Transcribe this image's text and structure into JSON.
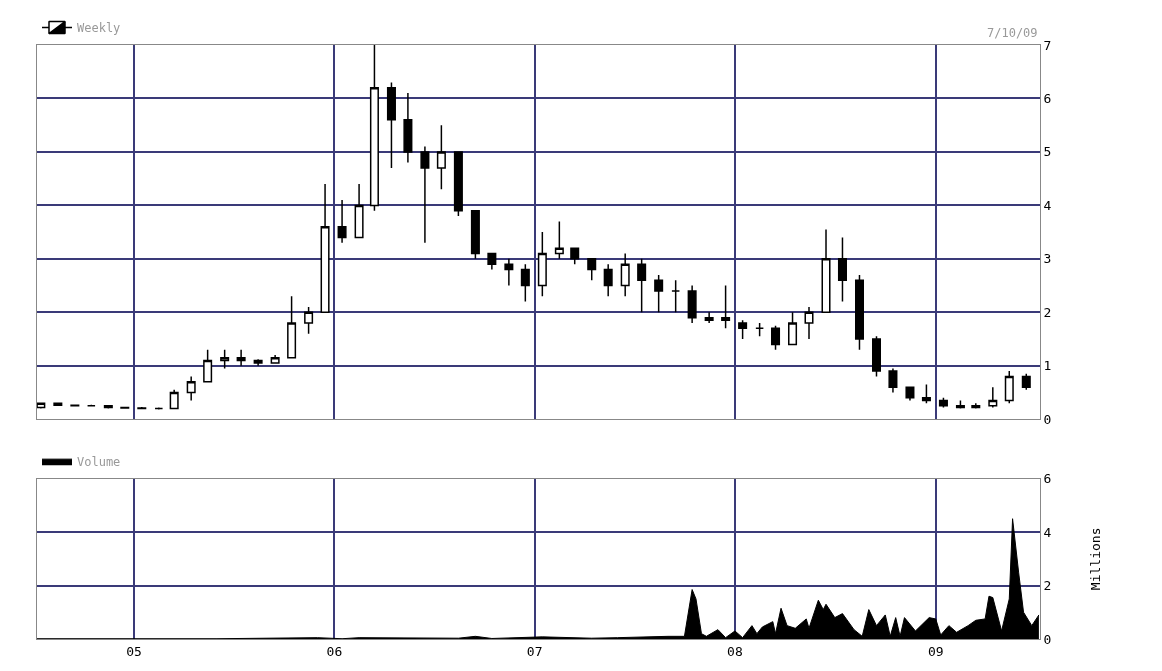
{
  "chart_data": [
    {
      "type": "candlestick",
      "annotations": [
        "7/10/09"
      ],
      "legend": "top left",
      "grid": true,
      "tick_labels": "y",
      "xlim": [
        "2004-07-08",
        "2009-07-10"
      ],
      "xticks": [
        {
          "value": "2005-01-01",
          "label": null
        },
        {
          "value": "2006-01-01",
          "label": null
        },
        {
          "value": "2007-01-01",
          "label": null
        },
        {
          "value": "2008-01-01",
          "label": null
        },
        {
          "value": "2009-01-01",
          "label": null
        }
      ],
      "ylim": [
        0,
        7
      ],
      "yticks": [
        0,
        1,
        2,
        3,
        4,
        5,
        6,
        7
      ],
      "x": [
        "2004-07-15",
        "2004-08-15",
        "2004-09-15",
        "2004-10-15",
        "2004-11-15",
        "2004-12-15",
        "2005-01-15",
        "2005-02-15",
        "2005-03-15",
        "2005-04-15",
        "2005-05-15",
        "2005-06-15",
        "2005-07-15",
        "2005-08-15",
        "2005-09-15",
        "2005-10-15",
        "2005-11-15",
        "2005-12-15",
        "2006-01-15",
        "2006-02-15",
        "2006-03-15",
        "2006-04-15",
        "2006-05-15",
        "2006-06-15",
        "2006-07-15",
        "2006-08-15",
        "2006-09-15",
        "2006-10-15",
        "2006-11-15",
        "2006-12-15",
        "2007-01-15",
        "2007-02-15",
        "2007-03-15",
        "2007-04-15",
        "2007-05-15",
        "2007-06-15",
        "2007-07-15",
        "2007-08-15",
        "2007-09-15",
        "2007-10-15",
        "2007-11-15",
        "2007-12-15",
        "2008-01-15",
        "2008-02-15",
        "2008-03-15",
        "2008-04-15",
        "2008-05-15",
        "2008-06-15",
        "2008-07-15",
        "2008-08-15",
        "2008-09-15",
        "2008-10-15",
        "2008-11-15",
        "2008-12-15",
        "2009-01-15",
        "2009-02-15",
        "2009-03-15",
        "2009-04-15",
        "2009-05-15",
        "2009-06-15"
      ],
      "series": [
        {
          "name": "Weekly",
          "color": "#000000",
          "ohlc": [
            [
              0.22,
              0.3,
              0.2,
              0.3
            ],
            [
              0.3,
              0.3,
              0.26,
              0.26
            ],
            [
              0.26,
              0.26,
              0.25,
              0.25
            ],
            [
              0.25,
              0.27,
              0.24,
              0.25
            ],
            [
              0.25,
              0.26,
              0.2,
              0.22
            ],
            [
              0.22,
              0.23,
              0.2,
              0.21
            ],
            [
              0.21,
              0.23,
              0.19,
              0.2
            ],
            [
              0.2,
              0.22,
              0.18,
              0.2
            ],
            [
              0.2,
              0.55,
              0.2,
              0.5
            ],
            [
              0.5,
              0.8,
              0.35,
              0.7
            ],
            [
              0.7,
              1.3,
              0.7,
              1.1
            ],
            [
              1.1,
              1.3,
              0.95,
              1.15
            ],
            [
              1.15,
              1.3,
              1.0,
              1.1
            ],
            [
              1.1,
              1.12,
              1.0,
              1.05
            ],
            [
              1.05,
              1.2,
              1.05,
              1.15
            ],
            [
              1.15,
              2.3,
              1.15,
              1.8
            ],
            [
              1.8,
              2.1,
              1.6,
              2.0
            ],
            [
              2.0,
              4.4,
              2.0,
              3.6
            ],
            [
              3.6,
              4.1,
              3.3,
              3.4
            ],
            [
              3.4,
              4.4,
              3.4,
              4.0
            ],
            [
              4.0,
              7.0,
              3.9,
              6.2
            ],
            [
              6.2,
              6.3,
              4.7,
              5.6
            ],
            [
              5.6,
              6.1,
              4.8,
              5.0
            ],
            [
              5.0,
              5.1,
              3.3,
              4.7
            ],
            [
              4.7,
              5.5,
              4.3,
              5.0
            ],
            [
              5.0,
              5.0,
              3.8,
              3.9
            ],
            [
              3.9,
              3.9,
              3.0,
              3.1
            ],
            [
              3.1,
              3.1,
              2.8,
              2.9
            ],
            [
              2.9,
              3.0,
              2.5,
              2.8
            ],
            [
              2.8,
              2.9,
              2.2,
              2.5
            ],
            [
              2.5,
              3.5,
              2.3,
              3.1
            ],
            [
              3.1,
              3.7,
              3.0,
              3.2
            ],
            [
              3.2,
              3.2,
              2.9,
              3.0
            ],
            [
              3.0,
              3.0,
              2.6,
              2.8
            ],
            [
              2.8,
              2.9,
              2.3,
              2.5
            ],
            [
              2.5,
              3.1,
              2.3,
              2.9
            ],
            [
              2.9,
              3.0,
              2.0,
              2.6
            ],
            [
              2.6,
              2.7,
              2.0,
              2.4
            ],
            [
              2.4,
              2.6,
              2.0,
              2.4
            ],
            [
              2.4,
              2.5,
              1.8,
              1.9
            ],
            [
              1.9,
              2.0,
              1.8,
              1.85
            ],
            [
              1.85,
              2.5,
              1.7,
              1.9
            ],
            [
              1.8,
              1.85,
              1.5,
              1.7
            ],
            [
              1.7,
              1.8,
              1.55,
              1.7
            ],
            [
              1.7,
              1.75,
              1.3,
              1.4
            ],
            [
              1.4,
              2.0,
              1.4,
              1.8
            ],
            [
              1.8,
              2.1,
              1.5,
              2.0
            ],
            [
              2.0,
              3.55,
              2.0,
              3.0
            ],
            [
              3.0,
              3.4,
              2.2,
              2.6
            ],
            [
              2.6,
              2.7,
              1.3,
              1.5
            ],
            [
              1.5,
              1.55,
              0.8,
              0.9
            ],
            [
              0.9,
              0.95,
              0.5,
              0.6
            ],
            [
              0.6,
              0.6,
              0.35,
              0.4
            ],
            [
              0.4,
              0.65,
              0.3,
              0.35
            ],
            [
              0.35,
              0.4,
              0.22,
              0.25
            ],
            [
              0.25,
              0.35,
              0.2,
              0.22
            ],
            [
              0.22,
              0.3,
              0.2,
              0.25
            ],
            [
              0.25,
              0.6,
              0.22,
              0.35
            ],
            [
              0.35,
              0.9,
              0.3,
              0.8
            ],
            [
              0.8,
              0.85,
              0.55,
              0.6
            ]
          ]
        }
      ]
    },
    {
      "type": "area",
      "ylabel": "Millions",
      "legend": "top left",
      "grid": true,
      "marker": "none",
      "xlim": [
        "2004-07-08",
        "2009-07-10"
      ],
      "xticks": [
        {
          "value": "2005-01-01",
          "label": "05"
        },
        {
          "value": "2006-01-01",
          "label": "06"
        },
        {
          "value": "2007-01-01",
          "label": "07"
        },
        {
          "value": "2008-01-01",
          "label": "08"
        },
        {
          "value": "2009-01-01",
          "label": "09"
        }
      ],
      "ylim": [
        0,
        6
      ],
      "yticks": [
        0,
        2,
        4,
        6
      ],
      "series": [
        {
          "name": "Volume",
          "color": "#000000",
          "x": [
            "2004-07-08",
            "2005-06-01",
            "2005-12-01",
            "2006-01-15",
            "2006-02-15",
            "2006-08-15",
            "2006-09-15",
            "2006-10-15",
            "2007-01-15",
            "2007-04-15",
            "2007-06-01",
            "2007-09-01",
            "2007-10-01",
            "2007-10-15",
            "2007-10-22",
            "2007-11-01",
            "2007-11-10",
            "2007-12-01",
            "2007-12-15",
            "2008-01-01",
            "2008-01-15",
            "2008-02-01",
            "2008-02-10",
            "2008-02-20",
            "2008-03-10",
            "2008-03-15",
            "2008-03-25",
            "2008-04-05",
            "2008-04-20",
            "2008-05-10",
            "2008-05-15",
            "2008-06-01",
            "2008-06-10",
            "2008-06-15",
            "2008-07-01",
            "2008-07-15",
            "2008-08-05",
            "2008-08-20",
            "2008-09-01",
            "2008-09-15",
            "2008-10-01",
            "2008-10-10",
            "2008-10-20",
            "2008-10-28",
            "2008-11-05",
            "2008-11-25",
            "2008-12-20",
            "2009-01-01",
            "2009-01-10",
            "2009-01-25",
            "2009-02-08",
            "2009-03-01",
            "2009-03-15",
            "2009-04-01",
            "2009-04-08",
            "2009-04-15",
            "2009-05-01",
            "2009-05-15",
            "2009-05-21",
            "2009-06-01",
            "2009-06-10",
            "2009-06-25",
            "2009-07-08"
          ],
          "values": [
            0.01,
            0.01,
            0.05,
            0.01,
            0.05,
            0.03,
            0.1,
            0.02,
            0.08,
            0.03,
            0.05,
            0.1,
            0.1,
            1.85,
            1.5,
            0.2,
            0.1,
            0.35,
            0.05,
            0.3,
            0.05,
            0.5,
            0.2,
            0.45,
            0.65,
            0.2,
            1.15,
            0.5,
            0.4,
            0.75,
            0.4,
            1.45,
            1.1,
            1.3,
            0.8,
            0.95,
            0.35,
            0.1,
            1.1,
            0.5,
            0.9,
            0.1,
            0.8,
            0.1,
            0.8,
            0.3,
            0.8,
            0.75,
            0.15,
            0.5,
            0.25,
            0.5,
            0.7,
            0.75,
            1.6,
            1.55,
            0.3,
            1.5,
            4.5,
            2.5,
            1.0,
            0.5,
            0.9
          ]
        }
      ]
    }
  ]
}
